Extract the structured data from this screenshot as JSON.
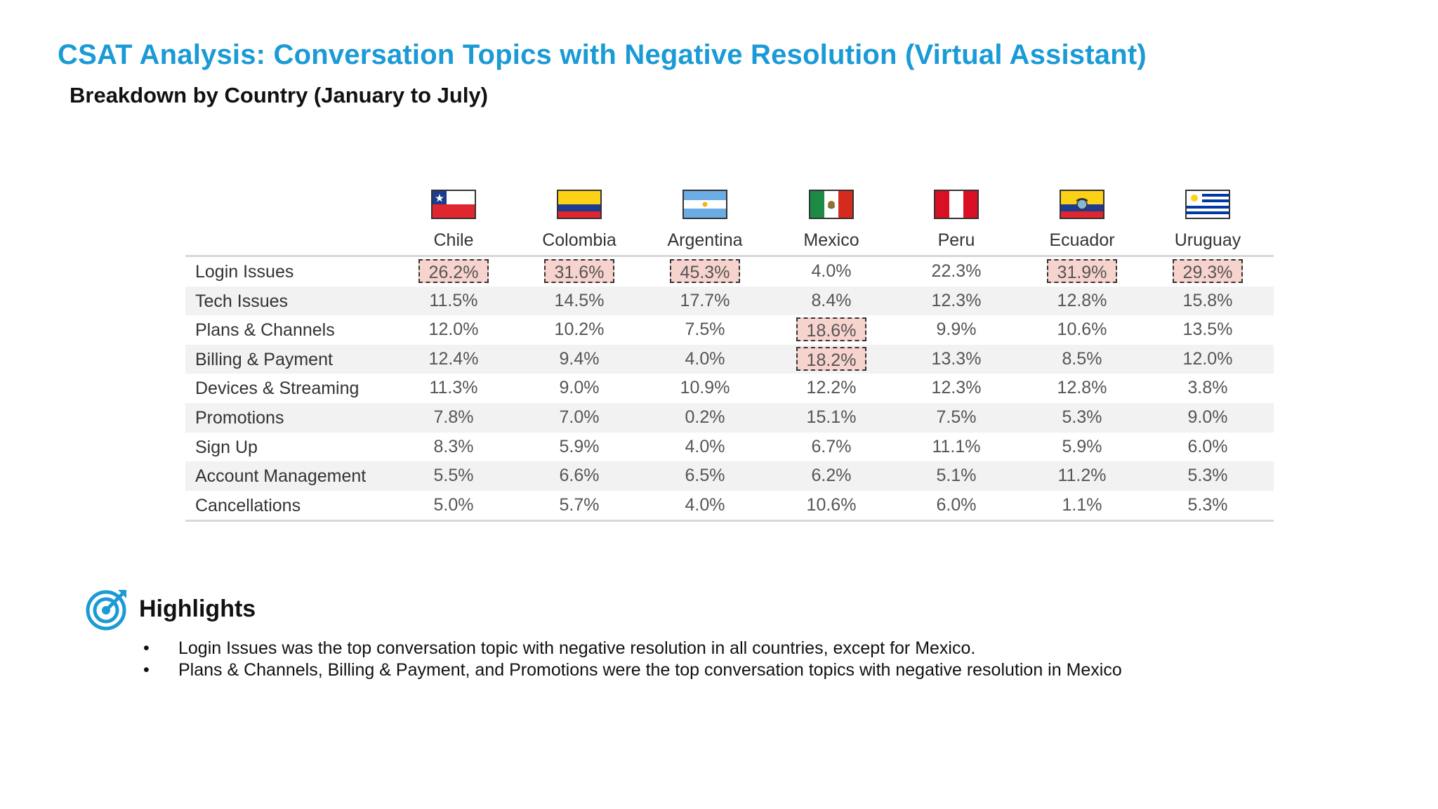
{
  "title": "CSAT Analysis: Conversation Topics with Negative Resolution (Virtual Assistant)",
  "subtitle": "Breakdown by Country (January to July)",
  "countries": [
    {
      "name": "Chile",
      "flag": "chile-flag-icon"
    },
    {
      "name": "Colombia",
      "flag": "colombia-flag-icon"
    },
    {
      "name": "Argentina",
      "flag": "argentina-flag-icon"
    },
    {
      "name": "Mexico",
      "flag": "mexico-flag-icon"
    },
    {
      "name": "Peru",
      "flag": "peru-flag-icon"
    },
    {
      "name": "Ecuador",
      "flag": "ecuador-flag-icon"
    },
    {
      "name": "Uruguay",
      "flag": "uruguay-flag-icon"
    }
  ],
  "rows": [
    {
      "topic": "Login Issues",
      "values": [
        "26.2%",
        "31.6%",
        "45.3%",
        "4.0%",
        "22.3%",
        "31.9%",
        "29.3%"
      ],
      "highlight": [
        true,
        true,
        true,
        false,
        false,
        true,
        true
      ]
    },
    {
      "topic": "Tech Issues",
      "values": [
        "11.5%",
        "14.5%",
        "17.7%",
        "8.4%",
        "12.3%",
        "12.8%",
        "15.8%"
      ],
      "highlight": [
        false,
        false,
        false,
        false,
        false,
        false,
        false
      ]
    },
    {
      "topic": "Plans & Channels",
      "values": [
        "12.0%",
        "10.2%",
        "7.5%",
        "18.6%",
        "9.9%",
        "10.6%",
        "13.5%"
      ],
      "highlight": [
        false,
        false,
        false,
        true,
        false,
        false,
        false
      ]
    },
    {
      "topic": "Billing & Payment",
      "values": [
        "12.4%",
        "9.4%",
        "4.0%",
        "18.2%",
        "13.3%",
        "8.5%",
        "12.0%"
      ],
      "highlight": [
        false,
        false,
        false,
        true,
        false,
        false,
        false
      ]
    },
    {
      "topic": "Devices & Streaming",
      "values": [
        "11.3%",
        "9.0%",
        "10.9%",
        "12.2%",
        "12.3%",
        "12.8%",
        "3.8%"
      ],
      "highlight": [
        false,
        false,
        false,
        false,
        false,
        false,
        false
      ]
    },
    {
      "topic": "Promotions",
      "values": [
        "7.8%",
        "7.0%",
        "0.2%",
        "15.1%",
        "7.5%",
        "5.3%",
        "9.0%"
      ],
      "highlight": [
        false,
        false,
        false,
        false,
        false,
        false,
        false
      ]
    },
    {
      "topic": "Sign Up",
      "values": [
        "8.3%",
        "5.9%",
        "4.0%",
        "6.7%",
        "11.1%",
        "5.9%",
        "6.0%"
      ],
      "highlight": [
        false,
        false,
        false,
        false,
        false,
        false,
        false
      ]
    },
    {
      "topic": "Account Management",
      "values": [
        "5.5%",
        "6.6%",
        "6.5%",
        "6.2%",
        "5.1%",
        "11.2%",
        "5.3%"
      ],
      "highlight": [
        false,
        false,
        false,
        false,
        false,
        false,
        false
      ]
    },
    {
      "topic": "Cancellations",
      "values": [
        "5.0%",
        "5.7%",
        "4.0%",
        "10.6%",
        "6.0%",
        "1.1%",
        "5.3%"
      ],
      "highlight": [
        false,
        false,
        false,
        false,
        false,
        false,
        false
      ]
    }
  ],
  "highlights": {
    "title": "Highlights",
    "icon": "target-icon",
    "bullets": [
      "Login Issues was the top conversation topic with negative resolution in all countries, except for Mexico.",
      "Plans & Channels, Billing & Payment, and Promotions were the top conversation topics with negative resolution in Mexico"
    ]
  },
  "colors": {
    "title": "#1a9ad6",
    "highlight_fill": "#f7d3cd",
    "row_alt": "#f2f2f2"
  }
}
